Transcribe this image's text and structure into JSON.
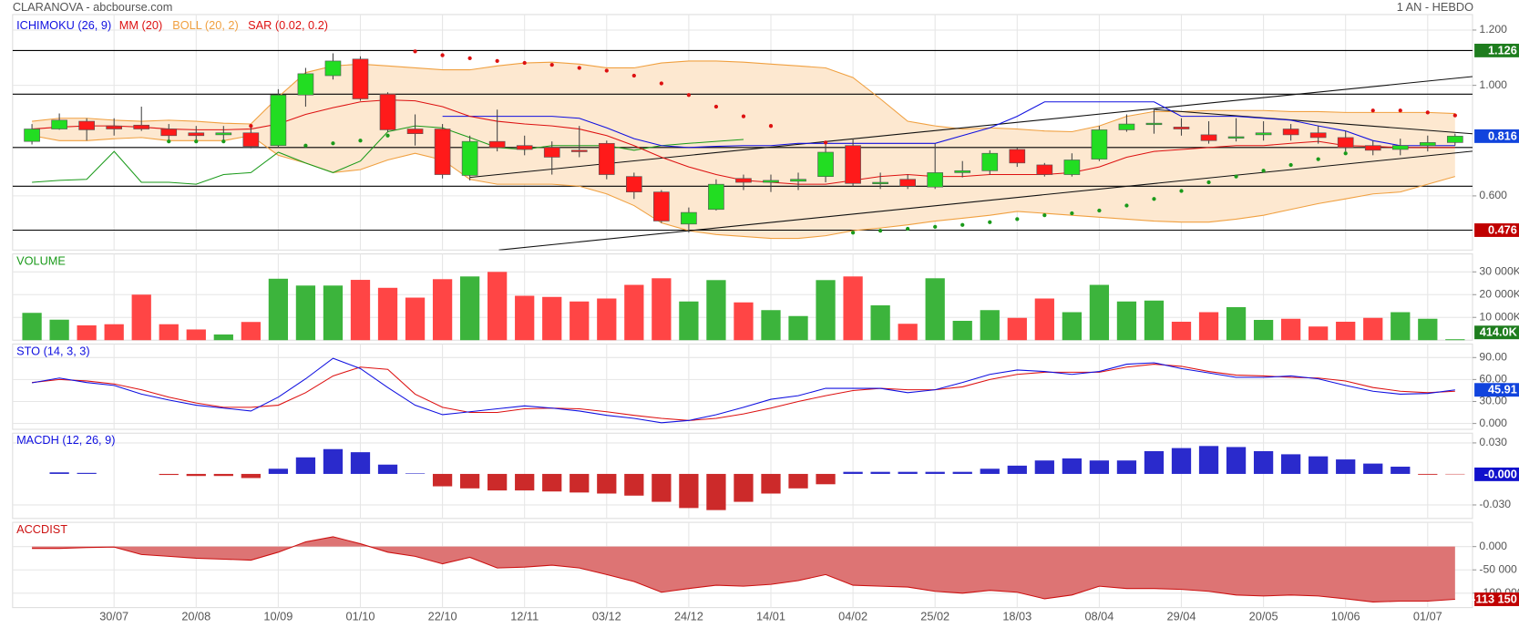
{
  "header": {
    "title": "CLARANOVA - abcbourse.com",
    "period": "1 AN - HEBDO"
  },
  "chart_data": [
    {
      "type": "candlestick",
      "up_color": "#22dd22",
      "down_color": "#ff1a1a",
      "open": [
        0.797,
        0.842,
        0.87,
        0.853,
        0.856,
        0.842,
        0.828,
        0.821,
        0.828,
        0.782,
        0.965,
        1.035,
        1.095,
        0.968,
        0.842,
        0.842,
        0.674,
        0.797,
        0.782,
        0.775,
        0.765,
        0.79,
        0.67,
        0.614,
        0.498,
        0.551,
        0.663,
        0.649,
        0.653,
        0.67,
        0.782,
        0.645,
        0.66,
        0.632,
        0.684,
        0.691,
        0.768,
        0.712,
        0.677,
        0.733,
        0.839,
        0.86,
        0.849,
        0.821,
        0.811,
        0.821,
        0.842,
        0.828,
        0.811,
        0.782,
        0.768,
        0.782,
        0.793
      ],
      "high": [
        0.86,
        0.898,
        0.881,
        0.881,
        0.923,
        0.86,
        0.853,
        0.853,
        0.86,
        0.986,
        1.063,
        1.116,
        1.105,
        0.975,
        0.895,
        0.86,
        0.818,
        0.912,
        0.818,
        0.797,
        0.853,
        0.8,
        0.684,
        0.621,
        0.558,
        0.66,
        0.677,
        0.677,
        0.684,
        0.793,
        0.807,
        0.684,
        0.677,
        0.789,
        0.726,
        0.765,
        0.775,
        0.719,
        0.754,
        0.853,
        0.895,
        0.916,
        0.881,
        0.87,
        0.881,
        0.87,
        0.86,
        0.853,
        0.835,
        0.8,
        0.807,
        0.818,
        0.825
      ],
      "low": [
        0.786,
        0.839,
        0.8,
        0.818,
        0.835,
        0.797,
        0.797,
        0.8,
        0.772,
        0.775,
        0.923,
        1.021,
        0.944,
        0.832,
        0.782,
        0.663,
        0.656,
        0.761,
        0.747,
        0.677,
        0.74,
        0.66,
        0.589,
        0.502,
        0.467,
        0.547,
        0.621,
        0.614,
        0.621,
        0.649,
        0.635,
        0.625,
        0.625,
        0.625,
        0.667,
        0.677,
        0.705,
        0.67,
        0.67,
        0.726,
        0.832,
        0.825,
        0.818,
        0.789,
        0.797,
        0.8,
        0.8,
        0.789,
        0.761,
        0.747,
        0.747,
        0.761,
        0.782
      ],
      "close": [
        0.842,
        0.874,
        0.839,
        0.842,
        0.842,
        0.818,
        0.818,
        0.828,
        0.779,
        0.965,
        1.042,
        1.088,
        0.951,
        0.839,
        0.825,
        0.677,
        0.797,
        0.775,
        0.768,
        0.74,
        0.761,
        0.677,
        0.614,
        0.509,
        0.54,
        0.642,
        0.649,
        0.656,
        0.66,
        0.758,
        0.645,
        0.649,
        0.635,
        0.684,
        0.691,
        0.754,
        0.719,
        0.677,
        0.73,
        0.839,
        0.86,
        0.863,
        0.842,
        0.8,
        0.814,
        0.828,
        0.821,
        0.811,
        0.775,
        0.765,
        0.782,
        0.793,
        0.816
      ],
      "ichimoku": {
        "name": "ICHIMOKU (26, 9)",
        "color": "#1010e0",
        "lagging_color": "#1a9a1a",
        "values": [
          null,
          null,
          null,
          null,
          null,
          null,
          null,
          null,
          null,
          null,
          null,
          null,
          null,
          null,
          null,
          0.888,
          0.888,
          0.888,
          0.888,
          0.888,
          0.881,
          0.846,
          0.807,
          0.782,
          0.775,
          0.779,
          0.782,
          0.782,
          0.79,
          0.79,
          0.79,
          0.79,
          0.79,
          0.79,
          0.818,
          0.846,
          0.888,
          0.94,
          0.94,
          0.94,
          0.94,
          0.94,
          0.888,
          0.888,
          0.888,
          0.881,
          0.874,
          0.853,
          0.835,
          0.8,
          0.782,
          0.782,
          0.782
        ],
        "lagging": [
          0.649,
          0.656,
          0.66,
          0.761,
          0.649,
          0.649,
          0.642,
          0.677,
          0.684,
          0.758,
          0.719,
          0.684,
          0.726,
          0.832,
          0.853,
          0.846,
          0.811,
          0.775,
          0.768,
          0.782,
          0.782,
          0.782,
          0.765,
          0.782,
          0.79,
          0.797,
          0.804,
          null,
          null,
          null,
          null,
          null,
          null,
          null,
          null,
          null,
          null,
          null,
          null,
          null,
          null,
          null,
          null,
          null,
          null,
          null,
          null,
          null,
          null,
          null,
          null,
          null,
          null
        ]
      },
      "mm": {
        "name": "MM (20)",
        "color": "#dd1111",
        "values": [
          0.842,
          0.849,
          0.853,
          0.853,
          0.849,
          0.842,
          0.839,
          0.839,
          0.842,
          0.86,
          0.895,
          0.919,
          0.94,
          0.947,
          0.944,
          0.923,
          0.888,
          0.87,
          0.86,
          0.853,
          0.842,
          0.818,
          0.782,
          0.74,
          0.705,
          0.677,
          0.656,
          0.649,
          0.642,
          0.642,
          0.656,
          0.67,
          0.677,
          0.67,
          0.67,
          0.677,
          0.677,
          0.677,
          0.684,
          0.705,
          0.74,
          0.761,
          0.768,
          0.775,
          0.782,
          0.782,
          0.79,
          0.797,
          0.782,
          0.779,
          0.775,
          0.775,
          0.775
        ]
      },
      "boll": {
        "name": "BOLL (20, 2)",
        "color": "#f0a040",
        "fill": "#fde8d0",
        "upper": [
          0.87,
          0.881,
          0.881,
          0.874,
          0.87,
          0.874,
          0.87,
          0.863,
          0.86,
          0.958,
          1.046,
          1.07,
          1.077,
          1.07,
          1.063,
          1.056,
          1.056,
          1.07,
          1.081,
          1.084,
          1.077,
          1.063,
          1.063,
          1.081,
          1.088,
          1.088,
          1.084,
          1.077,
          1.07,
          1.063,
          1.028,
          0.951,
          0.87,
          0.853,
          0.842,
          0.846,
          0.842,
          0.835,
          0.832,
          0.853,
          0.888,
          0.905,
          0.905,
          0.909,
          0.909,
          0.909,
          0.905,
          0.905,
          0.902,
          0.902,
          0.902,
          0.902,
          0.898
        ],
        "lower": [
          0.818,
          0.8,
          0.8,
          0.807,
          0.811,
          0.8,
          0.8,
          0.8,
          0.818,
          0.747,
          0.719,
          0.684,
          0.695,
          0.73,
          0.754,
          0.73,
          0.66,
          0.642,
          0.642,
          0.642,
          0.635,
          0.607,
          0.565,
          0.502,
          0.474,
          0.46,
          0.453,
          0.446,
          0.446,
          0.456,
          0.474,
          0.484,
          0.495,
          0.509,
          0.519,
          0.53,
          0.544,
          0.537,
          0.53,
          0.523,
          0.516,
          0.509,
          0.505,
          0.505,
          0.516,
          0.53,
          0.551,
          0.572,
          0.589,
          0.607,
          0.614,
          0.642,
          0.67
        ]
      },
      "sar": {
        "name": "SAR (0.02, 0.2)",
        "color": "#dd1111",
        "below_color": "#1a9a1a",
        "values": [
          null,
          null,
          null,
          null,
          null,
          0.797,
          0.797,
          0.797,
          0.853,
          null,
          0.782,
          0.79,
          0.8,
          0.818,
          1.123,
          1.109,
          1.098,
          1.088,
          1.081,
          1.074,
          1.063,
          1.053,
          1.035,
          1.007,
          0.965,
          0.923,
          0.888,
          0.853,
          null,
          0.793,
          0.467,
          0.474,
          0.481,
          0.488,
          0.495,
          0.505,
          0.516,
          0.53,
          0.537,
          0.547,
          0.565,
          0.589,
          0.618,
          0.649,
          0.67,
          0.691,
          0.712,
          0.733,
          0.754,
          0.909,
          0.909,
          0.902,
          0.891
        ]
      },
      "levels": [
        1.126,
        0.968,
        0.775,
        0.635,
        0.476
      ],
      "tags": [
        {
          "value": 1.126,
          "color": "#1e7d1e"
        },
        {
          "value": 0.816,
          "color": "#1144dd"
        },
        {
          "value": 0.476,
          "color": "#c00000"
        }
      ],
      "ylim": [
        0.404,
        1.256
      ],
      "yticks": [
        {
          "value": 1.2,
          "label": "1.200"
        },
        {
          "value": 1,
          "label": "1.000"
        },
        {
          "value": 0.6,
          "label": "0.600"
        }
      ],
      "grid": true
    },
    {
      "type": "bar",
      "title": "VOLUME",
      "title_color": "#1a9a1a",
      "color_by_candle": true,
      "values": [
        12000,
        9000,
        6500,
        7000,
        20000,
        7000,
        4700,
        2500,
        8000,
        27000,
        24000,
        24000,
        26500,
        23000,
        18700,
        26800,
        28000,
        30000,
        19500,
        19000,
        17000,
        18300,
        24300,
        27200,
        17000,
        26400,
        16600,
        13200,
        10600,
        26400,
        28000,
        15300,
        7200,
        27200,
        8500,
        13200,
        9800,
        18300,
        12300,
        24300,
        17000,
        17400,
        8100,
        12300,
        14500,
        8900,
        9400,
        6000,
        8100,
        9800,
        12300,
        9400,
        414
      ],
      "up_color": "#3cb43c",
      "down_color": "#ff4545",
      "last_value_label": "414.0K",
      "tag_color": "#1e7d1e",
      "ylim": [
        0,
        37900
      ],
      "yticks": [
        {
          "value": 10000,
          "label": "10 000K"
        },
        {
          "value": 20000,
          "label": "20 000K"
        },
        {
          "value": 30000,
          "label": "30 000K"
        }
      ],
      "grid": true
    },
    {
      "type": "line",
      "title": "STO (14, 3, 3)",
      "title_color": "#1010e0",
      "series": [
        {
          "color": "#dd1111",
          "values": [
            56,
            60,
            58,
            54,
            46,
            36,
            28,
            22,
            22,
            25,
            42,
            65,
            77,
            74,
            40,
            22,
            15,
            15,
            20,
            21,
            20,
            16,
            11,
            7,
            4,
            7,
            13,
            21,
            30,
            38,
            45,
            48,
            46,
            46,
            50,
            60,
            67,
            70,
            70,
            70,
            77,
            81,
            78,
            71,
            66,
            65,
            63,
            62,
            58,
            49,
            44,
            42,
            44
          ]
        },
        {
          "color": "#1010e0",
          "values": [
            55.6,
            62,
            56,
            52,
            40,
            32,
            25,
            21,
            17,
            36,
            61,
            89,
            75,
            49,
            25,
            12,
            16,
            20,
            24,
            21,
            17,
            11,
            7,
            1,
            4,
            12,
            22,
            33,
            38,
            48,
            48,
            48,
            42,
            46,
            56,
            67,
            73,
            71,
            67,
            71,
            81,
            83,
            75,
            69,
            63,
            63,
            65,
            61,
            52,
            44,
            40,
            41,
            45.91
          ]
        }
      ],
      "tag_series": 1,
      "tag_color": "#1144dd",
      "ylim": [
        -8,
        108.5
      ],
      "yticks": [
        {
          "value": 0,
          "label": "0.000"
        },
        {
          "value": 30,
          "label": "30.00"
        },
        {
          "value": 60,
          "label": "60.00"
        },
        {
          "value": 90,
          "label": "90.00"
        }
      ],
      "grid": true
    },
    {
      "type": "bar",
      "title": "MACDH (12, 26, 9)",
      "title_color": "#1010e0",
      "values": [
        0,
        0.0015,
        0.001,
        0,
        0,
        -0.001,
        -0.002,
        -0.002,
        -0.004,
        0.005,
        0.016,
        0.024,
        0.021,
        0.009,
        0.0005,
        -0.012,
        -0.014,
        -0.016,
        -0.016,
        -0.017,
        -0.018,
        -0.019,
        -0.021,
        -0.027,
        -0.033,
        -0.035,
        -0.027,
        -0.019,
        -0.014,
        -0.01,
        0.002,
        0.002,
        0.002,
        0.002,
        0.002,
        0.005,
        0.008,
        0.013,
        0.015,
        0.013,
        0.013,
        0.022,
        0.025,
        0.027,
        0.026,
        0.022,
        0.019,
        0.017,
        0.014,
        0.01,
        0.007,
        -0.0008,
        -0.0004
      ],
      "up_color": "#2a2acc",
      "down_color": "#cc2a2a",
      "last_value_label": "-0.000",
      "tag_color": "#1111cc",
      "ylim": [
        -0.0431,
        0.0394
      ],
      "yticks": [
        {
          "value": 0.03,
          "label": "0.030"
        },
        {
          "value": -0.03,
          "label": "-0.030"
        }
      ],
      "grid": true
    },
    {
      "type": "area",
      "title": "ACCDIST",
      "title_color": "#cc1111",
      "values": [
        -4000,
        -4000,
        -2000,
        -1000,
        -17000,
        -21000,
        -25000,
        -27000,
        -29000,
        -12000,
        10000,
        21000,
        6000,
        -12000,
        -21000,
        -37000,
        -23000,
        -46000,
        -44000,
        -40000,
        -46000,
        -60000,
        -75000,
        -98000,
        -90000,
        -83000,
        -85000,
        -81000,
        -73000,
        -60000,
        -83000,
        -85000,
        -87000,
        -96000,
        -100000,
        -94000,
        -98000,
        -112000,
        -104000,
        -85000,
        -90000,
        -90000,
        -92000,
        -96000,
        -104000,
        -106000,
        -104000,
        -106000,
        -112000,
        -119000,
        -117000,
        -117000,
        -113150
      ],
      "color": "#cc1111",
      "fill": "#dd7474",
      "last_value_label": "-113 150",
      "tag_color": "#c00000",
      "categories": [
        null,
        null,
        null,
        "30/07",
        null,
        null,
        "20/08",
        null,
        null,
        "10/09",
        null,
        null,
        "01/10",
        null,
        null,
        "22/10",
        null,
        null,
        "12/11",
        null,
        null,
        "03/12",
        null,
        null,
        "24/12",
        null,
        null,
        "14/01",
        null,
        null,
        "04/02",
        null,
        null,
        "25/02",
        null,
        null,
        "18/03",
        null,
        null,
        "08/04",
        null,
        null,
        "29/04",
        null,
        null,
        "20/05",
        null,
        null,
        "10/06",
        null,
        null,
        "01/07",
        null
      ],
      "ylim": [
        -131000,
        52000
      ],
      "yticks": [
        {
          "value": 0,
          "label": "0.000"
        },
        {
          "value": -50000,
          "label": "-50 000"
        },
        {
          "value": -100000,
          "label": "-100 000"
        }
      ],
      "grid": true
    }
  ]
}
